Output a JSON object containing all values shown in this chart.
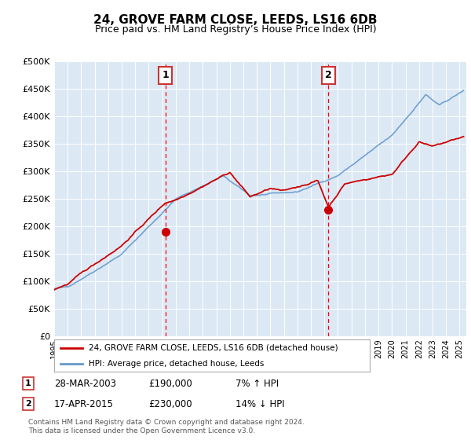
{
  "title": "24, GROVE FARM CLOSE, LEEDS, LS16 6DB",
  "subtitle": "Price paid vs. HM Land Registry’s House Price Index (HPI)",
  "legend_line1": "24, GROVE FARM CLOSE, LEEDS, LS16 6DB (detached house)",
  "legend_line2": "HPI: Average price, detached house, Leeds",
  "transaction1_date": "28-MAR-2003",
  "transaction1_price": 190000,
  "transaction1_hpi": "7% ↑ HPI",
  "transaction1_year": 2003.23,
  "transaction2_date": "17-APR-2015",
  "transaction2_price": 230000,
  "transaction2_hpi": "14% ↓ HPI",
  "transaction2_year": 2015.29,
  "ylim": [
    0,
    500000
  ],
  "xlim_start": 1995,
  "xlim_end": 2025.5,
  "background_color": "#dce9f5",
  "red_color": "#cc0000",
  "blue_color": "#6699cc",
  "footer": "Contains HM Land Registry data © Crown copyright and database right 2024.\nThis data is licensed under the Open Government Licence v3.0."
}
